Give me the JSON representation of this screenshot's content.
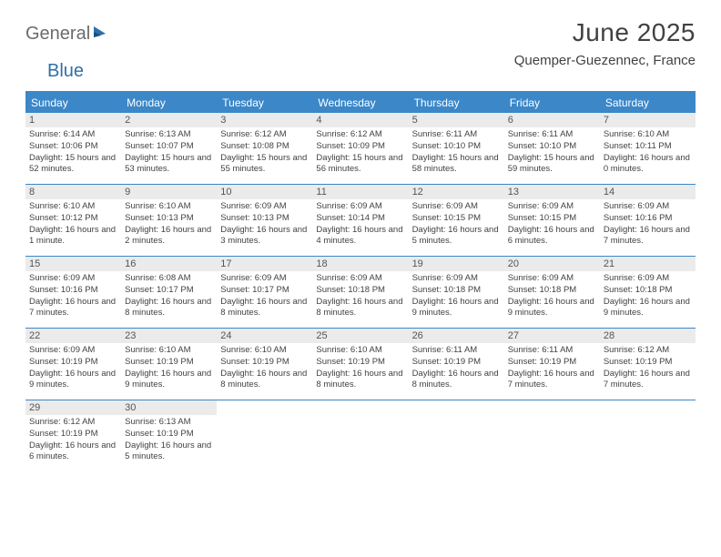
{
  "logo": {
    "part1": "General",
    "part2": "Blue"
  },
  "title": "June 2025",
  "location": "Quemper-Guezennec, France",
  "colors": {
    "header_bg": "#3b87c8",
    "header_text": "#ffffff",
    "daynum_bg": "#ebebeb",
    "border": "#3b87c8",
    "title_color": "#414141",
    "logo_gray": "#6b6b6b",
    "logo_blue": "#2f6fa8",
    "body_text": "#424242"
  },
  "weekdays": [
    "Sunday",
    "Monday",
    "Tuesday",
    "Wednesday",
    "Thursday",
    "Friday",
    "Saturday"
  ],
  "days": [
    {
      "n": "1",
      "sr": "6:14 AM",
      "ss": "10:06 PM",
      "dl": "15 hours and 52 minutes."
    },
    {
      "n": "2",
      "sr": "6:13 AM",
      "ss": "10:07 PM",
      "dl": "15 hours and 53 minutes."
    },
    {
      "n": "3",
      "sr": "6:12 AM",
      "ss": "10:08 PM",
      "dl": "15 hours and 55 minutes."
    },
    {
      "n": "4",
      "sr": "6:12 AM",
      "ss": "10:09 PM",
      "dl": "15 hours and 56 minutes."
    },
    {
      "n": "5",
      "sr": "6:11 AM",
      "ss": "10:10 PM",
      "dl": "15 hours and 58 minutes."
    },
    {
      "n": "6",
      "sr": "6:11 AM",
      "ss": "10:10 PM",
      "dl": "15 hours and 59 minutes."
    },
    {
      "n": "7",
      "sr": "6:10 AM",
      "ss": "10:11 PM",
      "dl": "16 hours and 0 minutes."
    },
    {
      "n": "8",
      "sr": "6:10 AM",
      "ss": "10:12 PM",
      "dl": "16 hours and 1 minute."
    },
    {
      "n": "9",
      "sr": "6:10 AM",
      "ss": "10:13 PM",
      "dl": "16 hours and 2 minutes."
    },
    {
      "n": "10",
      "sr": "6:09 AM",
      "ss": "10:13 PM",
      "dl": "16 hours and 3 minutes."
    },
    {
      "n": "11",
      "sr": "6:09 AM",
      "ss": "10:14 PM",
      "dl": "16 hours and 4 minutes."
    },
    {
      "n": "12",
      "sr": "6:09 AM",
      "ss": "10:15 PM",
      "dl": "16 hours and 5 minutes."
    },
    {
      "n": "13",
      "sr": "6:09 AM",
      "ss": "10:15 PM",
      "dl": "16 hours and 6 minutes."
    },
    {
      "n": "14",
      "sr": "6:09 AM",
      "ss": "10:16 PM",
      "dl": "16 hours and 7 minutes."
    },
    {
      "n": "15",
      "sr": "6:09 AM",
      "ss": "10:16 PM",
      "dl": "16 hours and 7 minutes."
    },
    {
      "n": "16",
      "sr": "6:08 AM",
      "ss": "10:17 PM",
      "dl": "16 hours and 8 minutes."
    },
    {
      "n": "17",
      "sr": "6:09 AM",
      "ss": "10:17 PM",
      "dl": "16 hours and 8 minutes."
    },
    {
      "n": "18",
      "sr": "6:09 AM",
      "ss": "10:18 PM",
      "dl": "16 hours and 8 minutes."
    },
    {
      "n": "19",
      "sr": "6:09 AM",
      "ss": "10:18 PM",
      "dl": "16 hours and 9 minutes."
    },
    {
      "n": "20",
      "sr": "6:09 AM",
      "ss": "10:18 PM",
      "dl": "16 hours and 9 minutes."
    },
    {
      "n": "21",
      "sr": "6:09 AM",
      "ss": "10:18 PM",
      "dl": "16 hours and 9 minutes."
    },
    {
      "n": "22",
      "sr": "6:09 AM",
      "ss": "10:19 PM",
      "dl": "16 hours and 9 minutes."
    },
    {
      "n": "23",
      "sr": "6:10 AM",
      "ss": "10:19 PM",
      "dl": "16 hours and 9 minutes."
    },
    {
      "n": "24",
      "sr": "6:10 AM",
      "ss": "10:19 PM",
      "dl": "16 hours and 8 minutes."
    },
    {
      "n": "25",
      "sr": "6:10 AM",
      "ss": "10:19 PM",
      "dl": "16 hours and 8 minutes."
    },
    {
      "n": "26",
      "sr": "6:11 AM",
      "ss": "10:19 PM",
      "dl": "16 hours and 8 minutes."
    },
    {
      "n": "27",
      "sr": "6:11 AM",
      "ss": "10:19 PM",
      "dl": "16 hours and 7 minutes."
    },
    {
      "n": "28",
      "sr": "6:12 AM",
      "ss": "10:19 PM",
      "dl": "16 hours and 7 minutes."
    },
    {
      "n": "29",
      "sr": "6:12 AM",
      "ss": "10:19 PM",
      "dl": "16 hours and 6 minutes."
    },
    {
      "n": "30",
      "sr": "6:13 AM",
      "ss": "10:19 PM",
      "dl": "16 hours and 5 minutes."
    }
  ],
  "labels": {
    "sunrise": "Sunrise: ",
    "sunset": "Sunset: ",
    "daylight": "Daylight: "
  },
  "layout": {
    "cols": 7,
    "start_weekday": 0,
    "total_days": 30
  }
}
